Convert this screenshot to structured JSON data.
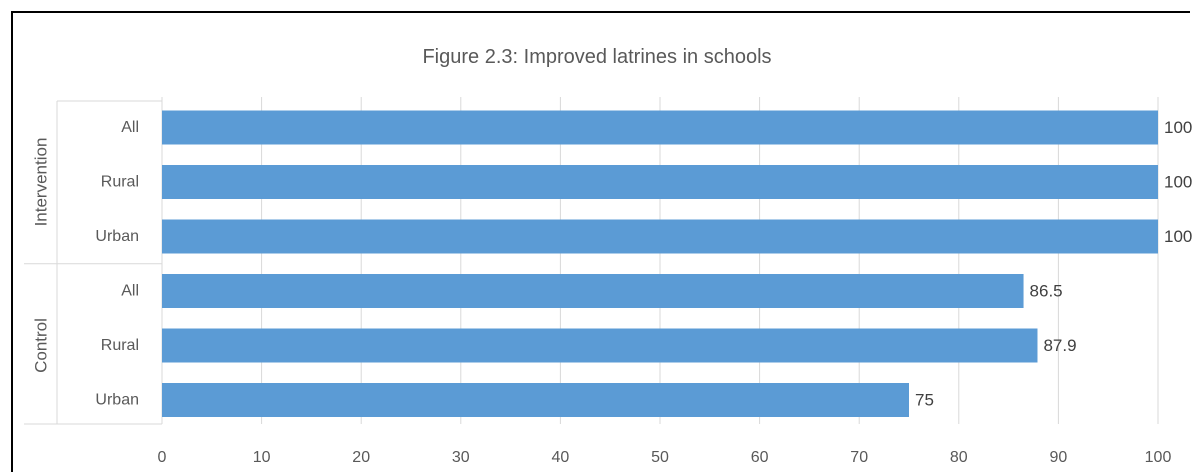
{
  "chart_data": {
    "type": "bar",
    "orientation": "horizontal",
    "title": "Figure 2.3: Improved latrines in schools",
    "groups": [
      {
        "name": "Intervention",
        "categories": [
          "All",
          "Rural",
          "Urban"
        ],
        "values": [
          100,
          100,
          100
        ]
      },
      {
        "name": "Control",
        "categories": [
          "All",
          "Rural",
          "Urban"
        ],
        "values": [
          86.5,
          87.9,
          75
        ]
      }
    ],
    "value_labels": [
      "100",
      "100",
      "100",
      "86.5",
      "87.9",
      "75"
    ],
    "xlim": [
      0,
      100
    ],
    "xticks": [
      0,
      10,
      20,
      30,
      40,
      50,
      60,
      70,
      80,
      90,
      100
    ],
    "grid": true,
    "legend": "none",
    "colors": {
      "bar": "#5b9bd5",
      "grid": "#d9d9d9",
      "text": "#595959"
    }
  }
}
